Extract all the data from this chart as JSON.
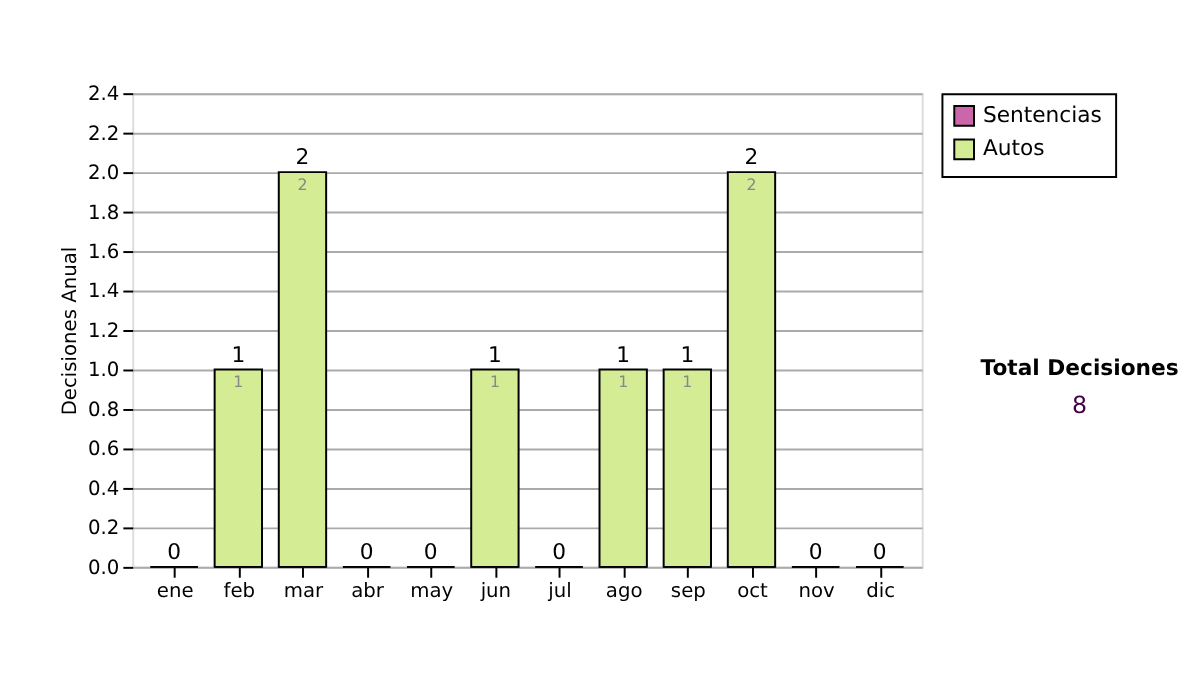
{
  "chart_data": {
    "type": "bar",
    "stacked": true,
    "ylabel": "Decisiones Anual",
    "categories": [
      "ene",
      "feb",
      "mar",
      "abr",
      "may",
      "jun",
      "jul",
      "ago",
      "sep",
      "oct",
      "nov",
      "dic"
    ],
    "series": [
      {
        "name": "Sentencias",
        "color": "#cc66aa",
        "values": [
          0,
          0,
          0,
          0,
          0,
          0,
          0,
          0,
          0,
          0,
          0,
          0
        ]
      },
      {
        "name": "Autos",
        "color": "#d4ec94",
        "values": [
          0,
          1,
          2,
          0,
          0,
          1,
          0,
          1,
          1,
          2,
          0,
          0
        ],
        "value_labels": [
          null,
          "1",
          "2",
          null,
          null,
          "1",
          null,
          "1",
          "1",
          "2",
          null,
          null
        ]
      }
    ],
    "totals": [
      "0",
      "1",
      "2",
      "0",
      "0",
      "1",
      "0",
      "1",
      "1",
      "2",
      "0",
      "0"
    ],
    "ylim": [
      0,
      2.4
    ],
    "yticks": [
      {
        "value": 0,
        "label": "0.0"
      },
      {
        "value": 0.2,
        "label": "0.2"
      },
      {
        "value": 0.4,
        "label": "0.4"
      },
      {
        "value": 0.6,
        "label": "0.6"
      },
      {
        "value": 0.8,
        "label": "0.8"
      },
      {
        "value": 1,
        "label": "1.0"
      },
      {
        "value": 1.2,
        "label": "1.2"
      },
      {
        "value": 1.4,
        "label": "1.4"
      },
      {
        "value": 1.6,
        "label": "1.6"
      },
      {
        "value": 1.8,
        "label": "1.8"
      },
      {
        "value": 2,
        "label": "2.0"
      },
      {
        "value": 2.2,
        "label": "2.2"
      },
      {
        "value": 2.4,
        "label": "2.4"
      }
    ],
    "grid": "y",
    "legend": "right",
    "annotations": [
      "Total Decisiones",
      "8"
    ]
  }
}
